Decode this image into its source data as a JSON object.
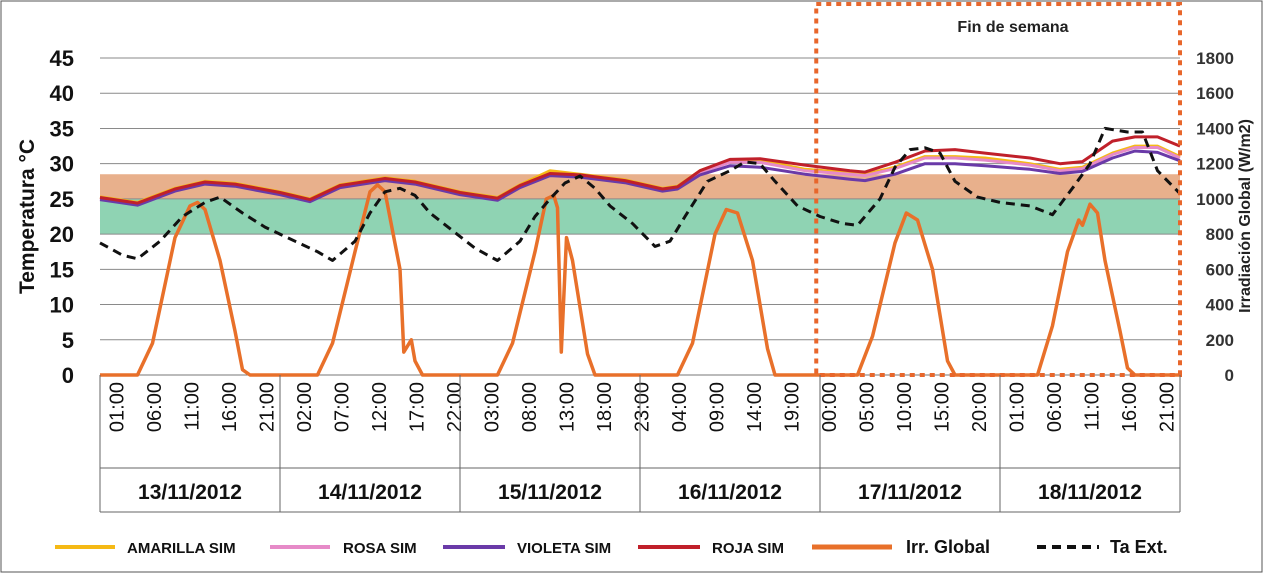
{
  "chart_data": {
    "type": "line",
    "left_axis": {
      "title": "Temperatura °C",
      "ticks": [
        "0",
        "5",
        "10",
        "15",
        "20",
        "25",
        "30",
        "35",
        "40",
        "45"
      ],
      "ylim": [
        0,
        45
      ]
    },
    "right_axis": {
      "title": "Irradiación Global (W/m2)",
      "ticks": [
        "0",
        "200",
        "400",
        "600",
        "800",
        "1000",
        "1200",
        "1400",
        "1600",
        "1800"
      ],
      "ylim": [
        0,
        1800
      ]
    },
    "x_tick_labels": [
      "01:00",
      "06:00",
      "11:00",
      "16:00",
      "21:00",
      "02:00",
      "07:00",
      "12:00",
      "17:00",
      "22:00",
      "03:00",
      "08:00",
      "13:00",
      "18:00",
      "23:00",
      "04:00",
      "09:00",
      "14:00",
      "19:00",
      "00:00",
      "05:00",
      "10:00",
      "15:00",
      "20:00",
      "01:00",
      "06:00",
      "11:00",
      "16:00",
      "21:00"
    ],
    "dates": [
      "13/11/2012",
      "14/11/2012",
      "15/11/2012",
      "16/11/2012",
      "17/11/2012",
      "18/11/2012"
    ],
    "comfort_bands": [
      {
        "name": "upper comfort band",
        "range": [
          25,
          28.5
        ],
        "color": "#e8b08c"
      },
      {
        "name": "lower comfort band",
        "range": [
          20,
          25
        ],
        "color": "#8fd3b3"
      }
    ],
    "weekend_box": {
      "label": "Fin de semana",
      "from_hour": 95.5,
      "to_hour": 144,
      "color": "#e8662b"
    },
    "series": [
      {
        "name": "AMARILLA SIM",
        "axis": "left",
        "color": "#f5b915",
        "points": [
          [
            0,
            25.3
          ],
          [
            5,
            24.5
          ],
          [
            10,
            26.5
          ],
          [
            14,
            27.5
          ],
          [
            18,
            27.2
          ],
          [
            24,
            26
          ],
          [
            28,
            25
          ],
          [
            32,
            27
          ],
          [
            38,
            28
          ],
          [
            42,
            27.5
          ],
          [
            48,
            26
          ],
          [
            53,
            25.2
          ],
          [
            56,
            27
          ],
          [
            60,
            29
          ],
          [
            64,
            28.5
          ],
          [
            70,
            27.7
          ],
          [
            75,
            26.5
          ],
          [
            77,
            26.8
          ],
          [
            80,
            29
          ],
          [
            84,
            30.5
          ],
          [
            88,
            30.5
          ],
          [
            94,
            29.2
          ],
          [
            100,
            28.7
          ],
          [
            102,
            28.5
          ],
          [
            106,
            29.5
          ],
          [
            110,
            31
          ],
          [
            114,
            31
          ],
          [
            118,
            30.8
          ],
          [
            124,
            30
          ],
          [
            128,
            29.2
          ],
          [
            131,
            29.5
          ],
          [
            135,
            31.5
          ],
          [
            138,
            32.5
          ],
          [
            141,
            32.5
          ],
          [
            144,
            31
          ]
        ]
      },
      {
        "name": "ROSA SIM",
        "axis": "left",
        "color": "#e68ac8",
        "points": [
          [
            0,
            25.1
          ],
          [
            5,
            24.3
          ],
          [
            10,
            26.3
          ],
          [
            14,
            27.3
          ],
          [
            18,
            27
          ],
          [
            24,
            25.8
          ],
          [
            28,
            24.8
          ],
          [
            32,
            26.8
          ],
          [
            38,
            27.8
          ],
          [
            42,
            27.3
          ],
          [
            48,
            25.8
          ],
          [
            53,
            25
          ],
          [
            56,
            26.8
          ],
          [
            60,
            28.5
          ],
          [
            64,
            28.3
          ],
          [
            70,
            27.5
          ],
          [
            75,
            26.3
          ],
          [
            77,
            26.6
          ],
          [
            80,
            28.8
          ],
          [
            84,
            30.2
          ],
          [
            88,
            30.2
          ],
          [
            94,
            29
          ],
          [
            100,
            28.5
          ],
          [
            102,
            28.3
          ],
          [
            106,
            29.3
          ],
          [
            110,
            30.8
          ],
          [
            114,
            30.8
          ],
          [
            118,
            30.5
          ],
          [
            124,
            29.8
          ],
          [
            128,
            29
          ],
          [
            131,
            29.3
          ],
          [
            135,
            31.3
          ],
          [
            138,
            32.3
          ],
          [
            141,
            32.3
          ],
          [
            144,
            30.8
          ]
        ]
      },
      {
        "name": "VIOLETA SIM",
        "axis": "left",
        "color": "#6a3aa8",
        "points": [
          [
            0,
            24.9
          ],
          [
            5,
            24.1
          ],
          [
            10,
            26.1
          ],
          [
            14,
            27.1
          ],
          [
            18,
            26.8
          ],
          [
            24,
            25.6
          ],
          [
            28,
            24.6
          ],
          [
            32,
            26.6
          ],
          [
            38,
            27.6
          ],
          [
            42,
            27.1
          ],
          [
            48,
            25.6
          ],
          [
            53,
            24.8
          ],
          [
            56,
            26.6
          ],
          [
            60,
            28.3
          ],
          [
            64,
            28.1
          ],
          [
            70,
            27.3
          ],
          [
            75,
            26.1
          ],
          [
            77,
            26.4
          ],
          [
            80,
            28.4
          ],
          [
            84,
            29.7
          ],
          [
            88,
            29.5
          ],
          [
            94,
            28.5
          ],
          [
            100,
            27.8
          ],
          [
            102,
            27.6
          ],
          [
            106,
            28.5
          ],
          [
            110,
            30
          ],
          [
            114,
            30
          ],
          [
            118,
            29.7
          ],
          [
            124,
            29.2
          ],
          [
            128,
            28.6
          ],
          [
            131,
            28.9
          ],
          [
            135,
            30.8
          ],
          [
            138,
            31.8
          ],
          [
            141,
            31.6
          ],
          [
            144,
            30.4
          ]
        ]
      },
      {
        "name": "ROJA SIM",
        "axis": "left",
        "color": "#c0202a",
        "points": [
          [
            0,
            25.2
          ],
          [
            5,
            24.4
          ],
          [
            10,
            26.4
          ],
          [
            14,
            27.4
          ],
          [
            18,
            27.1
          ],
          [
            24,
            25.9
          ],
          [
            28,
            24.9
          ],
          [
            32,
            26.9
          ],
          [
            38,
            27.9
          ],
          [
            42,
            27.4
          ],
          [
            48,
            25.9
          ],
          [
            53,
            25.1
          ],
          [
            56,
            26.9
          ],
          [
            60,
            28.6
          ],
          [
            64,
            28.4
          ],
          [
            70,
            27.6
          ],
          [
            75,
            26.4
          ],
          [
            77,
            26.7
          ],
          [
            80,
            29
          ],
          [
            84,
            30.6
          ],
          [
            88,
            30.7
          ],
          [
            94,
            29.8
          ],
          [
            100,
            29
          ],
          [
            102,
            28.8
          ],
          [
            106,
            30.2
          ],
          [
            110,
            31.8
          ],
          [
            114,
            32
          ],
          [
            118,
            31.5
          ],
          [
            124,
            30.8
          ],
          [
            128,
            30
          ],
          [
            131,
            30.3
          ],
          [
            135,
            33.2
          ],
          [
            138,
            33.8
          ],
          [
            141,
            33.8
          ],
          [
            144,
            32.5
          ]
        ]
      },
      {
        "name": "Irr. Global",
        "axis": "right",
        "color": "#e8702a",
        "points": [
          [
            0,
            0
          ],
          [
            5,
            0
          ],
          [
            7,
            180
          ],
          [
            10,
            780
          ],
          [
            12,
            960
          ],
          [
            13,
            980
          ],
          [
            14,
            940
          ],
          [
            16,
            650
          ],
          [
            18,
            250
          ],
          [
            19,
            30
          ],
          [
            20,
            0
          ],
          [
            24,
            0
          ],
          [
            29,
            0
          ],
          [
            31,
            180
          ],
          [
            34,
            700
          ],
          [
            36,
            1040
          ],
          [
            37,
            1080
          ],
          [
            38,
            1040
          ],
          [
            40,
            600
          ],
          [
            40.5,
            130
          ],
          [
            41.5,
            200
          ],
          [
            42,
            80
          ],
          [
            43,
            0
          ],
          [
            48,
            0
          ],
          [
            53,
            0
          ],
          [
            55,
            180
          ],
          [
            58,
            700
          ],
          [
            59.5,
            1000
          ],
          [
            60.5,
            1020
          ],
          [
            61,
            950
          ],
          [
            61.5,
            130
          ],
          [
            62.2,
            780
          ],
          [
            63,
            650
          ],
          [
            65,
            120
          ],
          [
            66,
            0
          ],
          [
            72,
            0
          ],
          [
            77,
            0
          ],
          [
            79,
            180
          ],
          [
            82,
            800
          ],
          [
            83.5,
            940
          ],
          [
            85,
            920
          ],
          [
            87,
            650
          ],
          [
            89,
            150
          ],
          [
            90,
            0
          ],
          [
            96,
            0
          ],
          [
            101,
            0
          ],
          [
            103,
            220
          ],
          [
            106,
            750
          ],
          [
            107.5,
            920
          ],
          [
            109,
            880
          ],
          [
            111,
            600
          ],
          [
            113,
            80
          ],
          [
            114,
            0
          ],
          [
            120,
            0
          ],
          [
            125,
            0
          ],
          [
            127,
            280
          ],
          [
            129,
            700
          ],
          [
            130.5,
            880
          ],
          [
            131,
            850
          ],
          [
            132,
            970
          ],
          [
            133,
            920
          ],
          [
            134,
            650
          ],
          [
            136,
            250
          ],
          [
            137,
            40
          ],
          [
            138,
            0
          ],
          [
            144,
            0
          ]
        ]
      },
      {
        "name": "Ta Ext.",
        "axis": "right",
        "color": "#111111",
        "points": [
          [
            0,
            750
          ],
          [
            3,
            680
          ],
          [
            5,
            660
          ],
          [
            8,
            760
          ],
          [
            11,
            900
          ],
          [
            14,
            980
          ],
          [
            16,
            1010
          ],
          [
            19,
            920
          ],
          [
            22,
            840
          ],
          [
            26,
            760
          ],
          [
            29,
            700
          ],
          [
            31,
            650
          ],
          [
            34,
            760
          ],
          [
            36,
            920
          ],
          [
            38,
            1040
          ],
          [
            40,
            1060
          ],
          [
            42,
            1020
          ],
          [
            44,
            920
          ],
          [
            47,
            820
          ],
          [
            50,
            720
          ],
          [
            53,
            650
          ],
          [
            56,
            760
          ],
          [
            58,
            900
          ],
          [
            60,
            1000
          ],
          [
            62,
            1090
          ],
          [
            64,
            1130
          ],
          [
            66,
            1060
          ],
          [
            68,
            960
          ],
          [
            71,
            860
          ],
          [
            74,
            730
          ],
          [
            76,
            760
          ],
          [
            78,
            900
          ],
          [
            81,
            1100
          ],
          [
            84,
            1160
          ],
          [
            86,
            1210
          ],
          [
            88,
            1200
          ],
          [
            90,
            1100
          ],
          [
            93,
            960
          ],
          [
            96,
            900
          ],
          [
            99,
            860
          ],
          [
            101,
            850
          ],
          [
            104,
            1000
          ],
          [
            106,
            1180
          ],
          [
            108,
            1280
          ],
          [
            110,
            1290
          ],
          [
            112,
            1260
          ],
          [
            114,
            1100
          ],
          [
            117,
            1010
          ],
          [
            120,
            980
          ],
          [
            124,
            960
          ],
          [
            127,
            910
          ],
          [
            130,
            1080
          ],
          [
            132,
            1200
          ],
          [
            134,
            1400
          ],
          [
            137,
            1380
          ],
          [
            139,
            1380
          ],
          [
            141,
            1160
          ],
          [
            144,
            1030
          ]
        ]
      }
    ],
    "legend": [
      "AMARILLA SIM",
      "ROSA SIM",
      "VIOLETA SIM",
      "ROJA SIM",
      "Irr. Global",
      "Ta Ext."
    ]
  }
}
